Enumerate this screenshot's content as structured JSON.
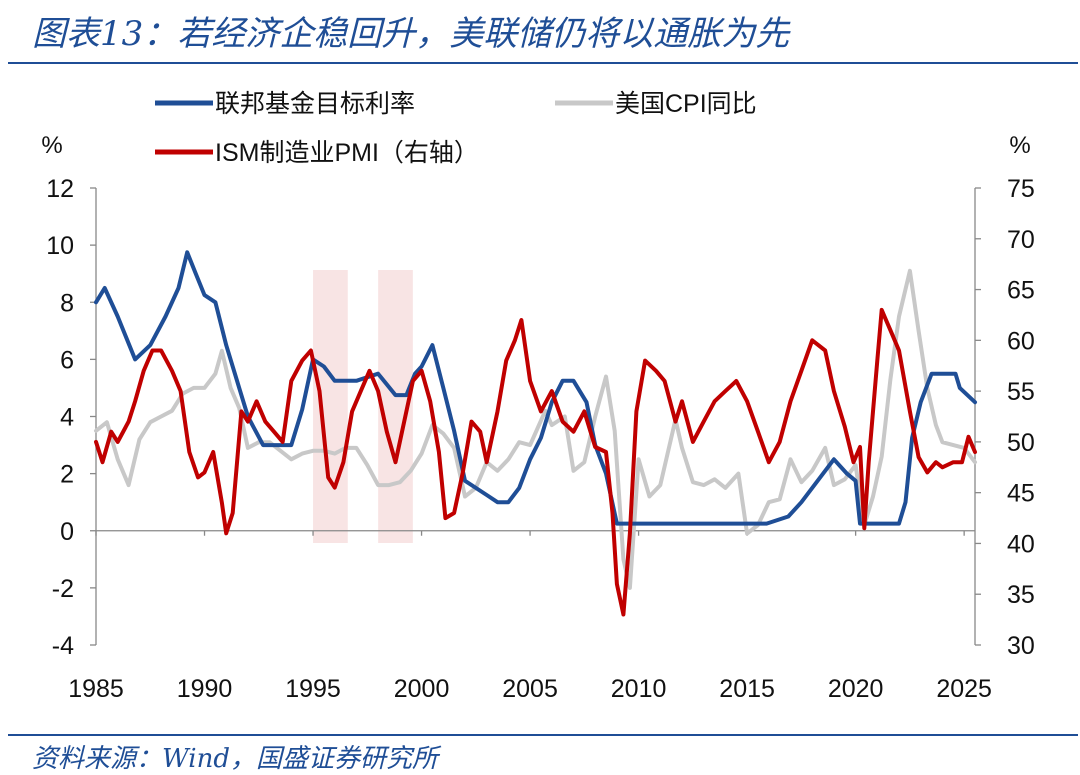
{
  "header": {
    "title": "图表13：若经济企稳回升，美联储仍将以通胀为先"
  },
  "footer": {
    "source": "资料来源：Wind，国盛证券研究所"
  },
  "chart_data": {
    "type": "line",
    "left_unit": "%",
    "right_unit": "%",
    "x_ticks": [
      "1985",
      "1990",
      "1995",
      "2000",
      "2005",
      "2010",
      "2015",
      "2020",
      "2025"
    ],
    "y_left_ticks": [
      "12",
      "10",
      "8",
      "6",
      "4",
      "2",
      "0",
      "-2",
      "-4"
    ],
    "y_right_ticks": [
      "75",
      "70",
      "65",
      "60",
      "55",
      "50",
      "45",
      "40",
      "35",
      "30"
    ],
    "xlim": [
      1985,
      2025.5
    ],
    "ylim_left": [
      -4,
      12
    ],
    "ylim_right": [
      30,
      75
    ],
    "recession_bands": [
      [
        1995.0,
        1996.6
      ],
      [
        1998.0,
        1999.6
      ]
    ],
    "legend": [
      {
        "name": "联邦基金目标利率",
        "color": "#1f4e96"
      },
      {
        "name": "美国CPI同比",
        "color": "#c8c8c8"
      },
      {
        "name": "ISM制造业PMI（右轴）",
        "color": "#c00000"
      }
    ],
    "series": [
      {
        "name": "联邦基金目标利率",
        "axis": "left",
        "color": "#1f4e96",
        "x": [
          1985.0,
          1985.4,
          1986.0,
          1986.8,
          1987.5,
          1988.2,
          1988.8,
          1989.2,
          1989.6,
          1990.0,
          1990.5,
          1991.0,
          1991.6,
          1992.0,
          1992.7,
          1993.5,
          1994.0,
          1994.5,
          1995.0,
          1995.5,
          1996.0,
          1997.0,
          1998.0,
          1998.8,
          1999.3,
          1999.7,
          2000.0,
          2000.5,
          2001.0,
          2001.5,
          2002.0,
          2003.0,
          2003.5,
          2004.0,
          2004.5,
          2005.0,
          2005.5,
          2006.0,
          2006.5,
          2007.0,
          2007.6,
          2008.0,
          2008.5,
          2009.0,
          2010.0,
          2012.0,
          2014.0,
          2015.9,
          2016.9,
          2017.5,
          2018.0,
          2018.5,
          2019.0,
          2019.6,
          2020.0,
          2020.2,
          2021.0,
          2022.0,
          2022.3,
          2022.6,
          2023.0,
          2023.5,
          2024.0,
          2024.6,
          2024.8,
          2025.5
        ],
        "y": [
          8.0,
          8.5,
          7.5,
          6.0,
          6.5,
          7.5,
          8.5,
          9.75,
          9.0,
          8.25,
          8.0,
          6.5,
          5.0,
          4.0,
          3.0,
          3.0,
          3.0,
          4.25,
          6.0,
          5.75,
          5.25,
          5.25,
          5.5,
          4.75,
          4.75,
          5.5,
          5.75,
          6.5,
          5.0,
          3.5,
          1.75,
          1.25,
          1.0,
          1.0,
          1.5,
          2.5,
          3.25,
          4.5,
          5.25,
          5.25,
          4.5,
          3.0,
          2.0,
          0.25,
          0.25,
          0.25,
          0.25,
          0.25,
          0.5,
          1.0,
          1.5,
          2.0,
          2.5,
          2.0,
          1.75,
          0.25,
          0.25,
          0.25,
          1.0,
          3.25,
          4.5,
          5.5,
          5.5,
          5.5,
          5.0,
          4.5
        ]
      },
      {
        "name": "美国CPI同比",
        "axis": "left",
        "color": "#c8c8c8",
        "x": [
          1985.0,
          1985.5,
          1986.0,
          1986.5,
          1987.0,
          1987.5,
          1988.0,
          1988.5,
          1989.0,
          1989.5,
          1990.0,
          1990.5,
          1990.8,
          1991.2,
          1991.6,
          1992.0,
          1992.5,
          1993.0,
          1993.5,
          1994.0,
          1994.5,
          1995.0,
          1995.5,
          1996.0,
          1996.5,
          1997.0,
          1997.5,
          1998.0,
          1998.5,
          1999.0,
          1999.5,
          2000.0,
          2000.5,
          2001.0,
          2001.5,
          2002.0,
          2002.5,
          2003.0,
          2003.5,
          2004.0,
          2004.5,
          2005.0,
          2005.7,
          2006.0,
          2006.6,
          2007.0,
          2007.5,
          2008.0,
          2008.5,
          2008.9,
          2009.3,
          2009.6,
          2010.0,
          2010.5,
          2011.0,
          2011.7,
          2012.0,
          2012.5,
          2013.0,
          2013.5,
          2014.0,
          2014.6,
          2015.0,
          2015.5,
          2016.0,
          2016.5,
          2017.0,
          2017.5,
          2018.0,
          2018.6,
          2019.0,
          2019.5,
          2020.0,
          2020.4,
          2020.8,
          2021.2,
          2021.6,
          2022.0,
          2022.5,
          2022.9,
          2023.3,
          2023.7,
          2024.0,
          2024.5,
          2025.0,
          2025.5
        ],
        "y": [
          3.5,
          3.8,
          2.5,
          1.6,
          3.2,
          3.8,
          4.0,
          4.2,
          4.8,
          5.0,
          5.0,
          5.5,
          6.3,
          5.0,
          4.3,
          2.9,
          3.1,
          3.1,
          2.8,
          2.5,
          2.7,
          2.8,
          2.8,
          2.7,
          2.9,
          2.9,
          2.3,
          1.6,
          1.6,
          1.7,
          2.1,
          2.7,
          3.7,
          3.4,
          2.9,
          1.2,
          1.5,
          2.4,
          2.1,
          2.5,
          3.1,
          3.0,
          4.2,
          3.7,
          4.0,
          2.1,
          2.4,
          4.0,
          5.4,
          3.5,
          -1.0,
          -2.0,
          2.5,
          1.2,
          1.6,
          3.9,
          2.9,
          1.7,
          1.6,
          1.8,
          1.5,
          2.0,
          -0.1,
          0.2,
          1.0,
          1.1,
          2.5,
          1.7,
          2.1,
          2.9,
          1.6,
          1.8,
          2.3,
          0.2,
          1.2,
          2.6,
          5.3,
          7.5,
          9.1,
          7.0,
          5.0,
          3.7,
          3.1,
          3.0,
          2.9,
          2.4
        ]
      },
      {
        "name": "ISM制造业PMI（右轴）",
        "axis": "right",
        "color": "#c00000",
        "x": [
          1985.0,
          1985.3,
          1985.7,
          1986.0,
          1986.5,
          1986.8,
          1987.2,
          1987.6,
          1988.0,
          1988.5,
          1988.9,
          1989.3,
          1989.7,
          1990.0,
          1990.4,
          1990.8,
          1991.0,
          1991.3,
          1991.7,
          1992.0,
          1992.4,
          1992.8,
          1993.2,
          1993.6,
          1994.0,
          1994.5,
          1994.9,
          1995.3,
          1995.7,
          1996.0,
          1996.4,
          1996.8,
          1997.2,
          1997.6,
          1998.0,
          1998.4,
          1998.8,
          1999.2,
          1999.6,
          2000.0,
          2000.4,
          2000.8,
          2001.1,
          2001.5,
          2001.9,
          2002.3,
          2002.7,
          2003.0,
          2003.5,
          2003.9,
          2004.3,
          2004.6,
          2005.0,
          2005.5,
          2006.0,
          2006.5,
          2007.0,
          2007.5,
          2008.0,
          2008.5,
          2008.8,
          2009.0,
          2009.3,
          2009.6,
          2009.9,
          2010.3,
          2010.8,
          2011.2,
          2011.7,
          2012.0,
          2012.5,
          2013.0,
          2013.5,
          2014.0,
          2014.5,
          2015.0,
          2015.5,
          2016.0,
          2016.5,
          2017.0,
          2017.5,
          2018.0,
          2018.6,
          2019.0,
          2019.5,
          2019.9,
          2020.2,
          2020.4,
          2020.6,
          2021.0,
          2021.2,
          2021.6,
          2022.0,
          2022.5,
          2022.9,
          2023.3,
          2023.7,
          2024.0,
          2024.5,
          2024.9,
          2025.2,
          2025.5
        ],
        "y": [
          50,
          48,
          51,
          50,
          52,
          54,
          57,
          59,
          59,
          57,
          55,
          49,
          46.5,
          47,
          49,
          44,
          41,
          43,
          53,
          52,
          54,
          52,
          51,
          50,
          56,
          58,
          59,
          55,
          46.5,
          45.5,
          48,
          53,
          55,
          57,
          55,
          51,
          48,
          52,
          56,
          57,
          54,
          49,
          42.5,
          43,
          47,
          52,
          51,
          48,
          53,
          58,
          60,
          62,
          56,
          53,
          55,
          52,
          51,
          53,
          49.5,
          49,
          43,
          36,
          33,
          41,
          53,
          58,
          57,
          56,
          52,
          54,
          50,
          52,
          54,
          55,
          56,
          54,
          51,
          48,
          50,
          54,
          57,
          60,
          59,
          55,
          51.5,
          48,
          49.5,
          41.5,
          48,
          58,
          63,
          61,
          59,
          53,
          48.5,
          47,
          48,
          47.5,
          48,
          48,
          50.5,
          49
        ]
      }
    ]
  }
}
